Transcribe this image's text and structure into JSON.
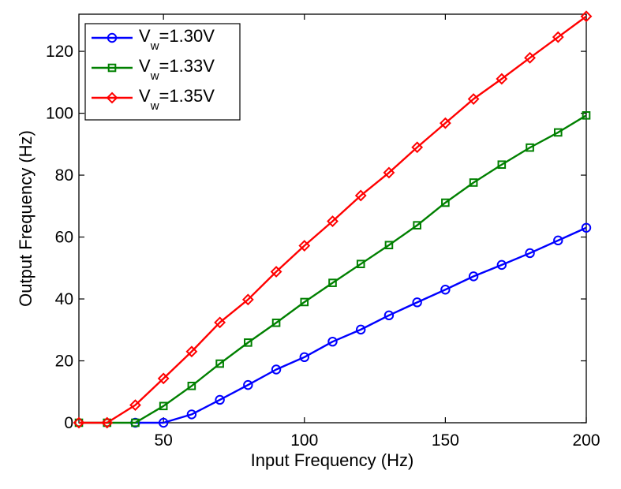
{
  "chart_data": {
    "type": "line",
    "title": "",
    "xlabel": "Input Frequency (Hz)",
    "ylabel": "Output Frequency (Hz)",
    "xlim": [
      20,
      200
    ],
    "ylim": [
      0,
      132
    ],
    "xticks": [
      50,
      100,
      150,
      200
    ],
    "yticks": [
      0,
      20,
      40,
      60,
      80,
      100,
      120
    ],
    "grid": false,
    "legend_position": "top-left",
    "x": [
      20,
      30,
      40,
      50,
      60,
      70,
      80,
      90,
      100,
      110,
      120,
      130,
      140,
      150,
      160,
      170,
      180,
      190,
      200
    ],
    "series": [
      {
        "name": "V",
        "name_sub": "w",
        "name_suffix": "=1.30V",
        "color": "#0000ff",
        "marker": "circle",
        "x": [
          40,
          50,
          60,
          70,
          80,
          90,
          100,
          110,
          120,
          130,
          140,
          150,
          160,
          170,
          180,
          190,
          200
        ],
        "values": [
          0,
          0,
          2.7,
          7.4,
          12.2,
          17.2,
          21.2,
          26.2,
          30.1,
          34.7,
          38.9,
          43.0,
          47.3,
          51.0,
          54.8,
          58.9,
          63.0
        ]
      },
      {
        "name": "V",
        "name_sub": "w",
        "name_suffix": "=1.33V",
        "color": "#008000",
        "marker": "square",
        "x": [
          20,
          30,
          40,
          50,
          60,
          70,
          80,
          90,
          100,
          110,
          120,
          130,
          140,
          150,
          160,
          170,
          180,
          190,
          200
        ],
        "values": [
          0,
          0,
          0,
          5.4,
          11.9,
          19.1,
          25.9,
          32.3,
          39.0,
          45.2,
          51.3,
          57.4,
          63.8,
          71.1,
          77.6,
          83.4,
          88.9,
          93.8,
          99.3
        ]
      },
      {
        "name": "V",
        "name_sub": "w",
        "name_suffix": "=1.35V",
        "color": "#ff0000",
        "marker": "diamond",
        "x": [
          20,
          30,
          40,
          50,
          60,
          70,
          80,
          90,
          100,
          110,
          120,
          130,
          140,
          150,
          160,
          170,
          180,
          190,
          200
        ],
        "values": [
          0,
          0,
          5.7,
          14.3,
          23.0,
          32.4,
          39.8,
          48.8,
          57.2,
          65.1,
          73.4,
          80.8,
          89.0,
          96.8,
          104.6,
          111.1,
          117.9,
          124.6,
          131.3
        ]
      }
    ]
  }
}
